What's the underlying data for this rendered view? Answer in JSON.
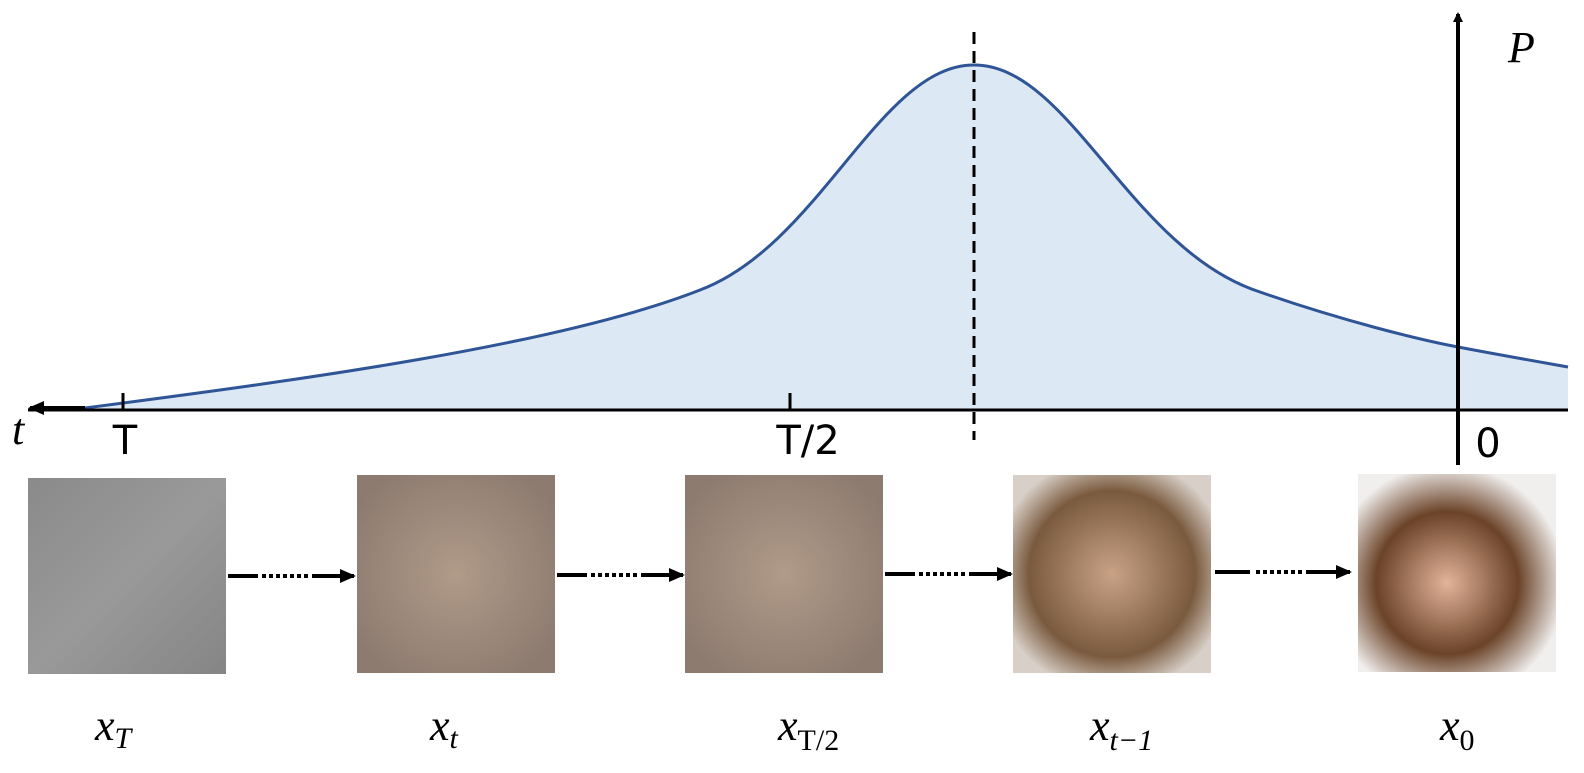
{
  "axes": {
    "y_label": "P",
    "x_label": "t",
    "ticks": [
      "T",
      "T/2",
      "0"
    ]
  },
  "frames": [
    {
      "main": "x",
      "sub": "T"
    },
    {
      "main": "x",
      "sub": "t"
    },
    {
      "main": "x",
      "sub": "T/2"
    },
    {
      "main": "x",
      "sub": "t−1"
    },
    {
      "main": "x",
      "sub": "0"
    }
  ]
}
